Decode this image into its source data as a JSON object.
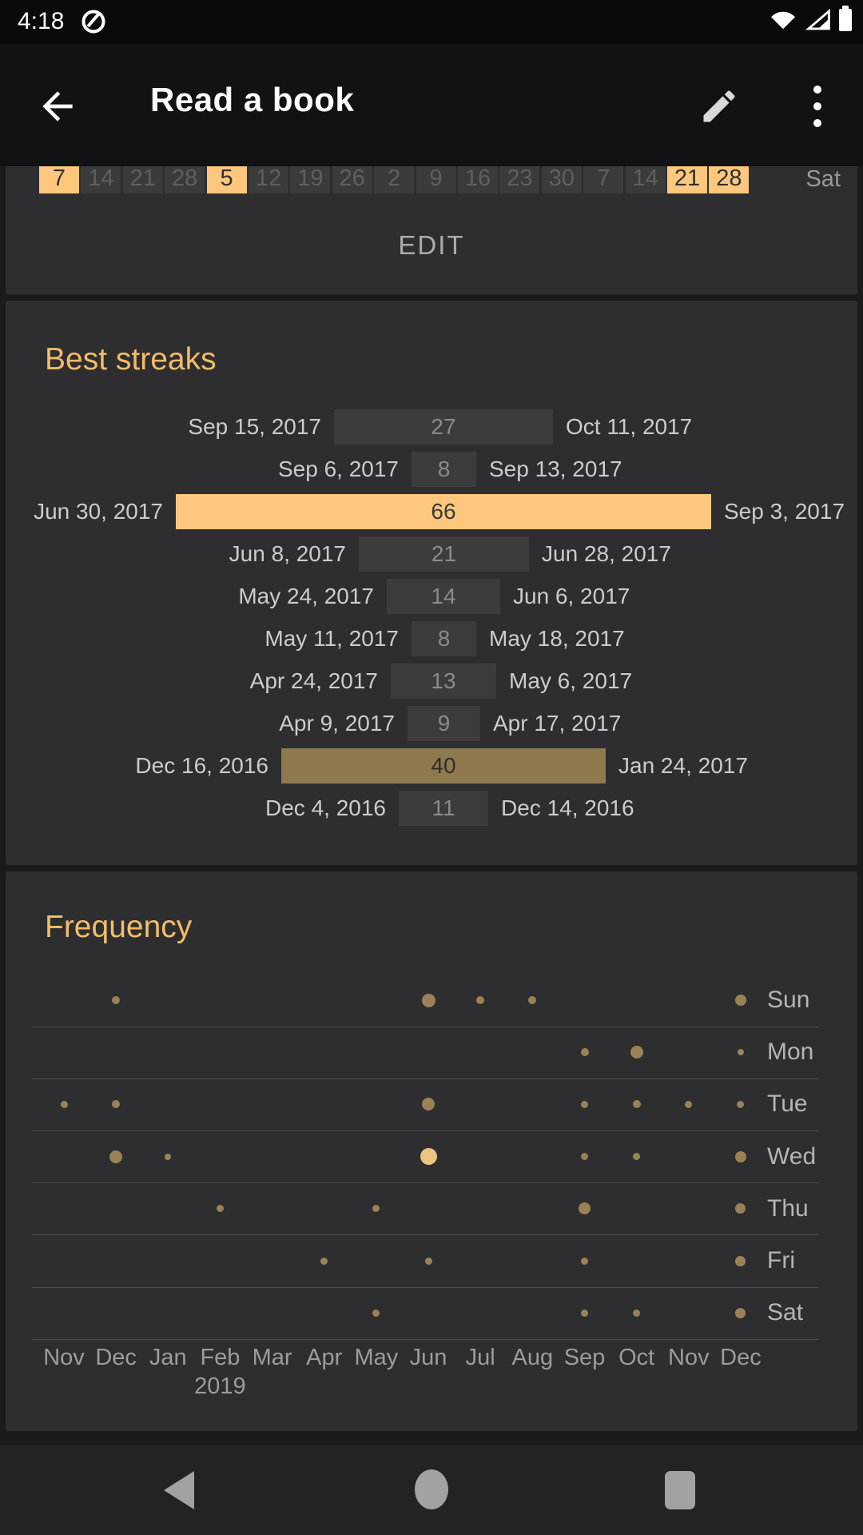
{
  "status_bar": {
    "time": "4:18"
  },
  "app_bar": {
    "title": "Read a book"
  },
  "calendar": {
    "cells": [
      "7",
      "14",
      "21",
      "28",
      "5",
      "12",
      "19",
      "26",
      "2",
      "9",
      "16",
      "23",
      "30",
      "7",
      "14",
      "21",
      "28"
    ],
    "highlighted": [
      0,
      4,
      15,
      16
    ],
    "weekday_label": "Sat",
    "edit_label": "EDIT"
  },
  "best_streaks": {
    "title": "Best streaks",
    "max_value": 66,
    "rows": [
      {
        "start": "Sep 15, 2017",
        "value": 27,
        "end": "Oct 11, 2017",
        "tone": "gray"
      },
      {
        "start": "Sep 6, 2017",
        "value": 8,
        "end": "Sep 13, 2017",
        "tone": "gray"
      },
      {
        "start": "Jun 30, 2017",
        "value": 66,
        "end": "Sep 3, 2017",
        "tone": "amber"
      },
      {
        "start": "Jun 8, 2017",
        "value": 21,
        "end": "Jun 28, 2017",
        "tone": "gray"
      },
      {
        "start": "May 24, 2017",
        "value": 14,
        "end": "Jun 6, 2017",
        "tone": "gray"
      },
      {
        "start": "May 11, 2017",
        "value": 8,
        "end": "May 18, 2017",
        "tone": "gray"
      },
      {
        "start": "Apr 24, 2017",
        "value": 13,
        "end": "May 6, 2017",
        "tone": "gray"
      },
      {
        "start": "Apr 9, 2017",
        "value": 9,
        "end": "Apr 17, 2017",
        "tone": "gray"
      },
      {
        "start": "Dec 16, 2016",
        "value": 40,
        "end": "Jan 24, 2017",
        "tone": "olive"
      },
      {
        "start": "Dec 4, 2016",
        "value": 11,
        "end": "Dec 14, 2016",
        "tone": "gray"
      }
    ]
  },
  "frequency": {
    "title": "Frequency",
    "months": [
      "Nov",
      "Dec",
      "Jan",
      "Feb",
      "Mar",
      "Apr",
      "May",
      "Jun",
      "Jul",
      "Aug",
      "Sep",
      "Oct",
      "Nov",
      "Dec"
    ],
    "year_label": "2019",
    "year_month_index": 3,
    "days": [
      {
        "label": "Sun",
        "dots": [
          {
            "m": 1,
            "s": 10
          },
          {
            "m": 7,
            "s": 17
          },
          {
            "m": 8,
            "s": 10
          },
          {
            "m": 9,
            "s": 10
          },
          {
            "m": 13,
            "s": 14
          }
        ]
      },
      {
        "label": "Mon",
        "dots": [
          {
            "m": 10,
            "s": 10
          },
          {
            "m": 11,
            "s": 16
          },
          {
            "m": 13,
            "s": 8
          }
        ]
      },
      {
        "label": "Tue",
        "dots": [
          {
            "m": 0,
            "s": 9
          },
          {
            "m": 1,
            "s": 10
          },
          {
            "m": 7,
            "s": 16
          },
          {
            "m": 10,
            "s": 9
          },
          {
            "m": 11,
            "s": 10
          },
          {
            "m": 12,
            "s": 9
          },
          {
            "m": 13,
            "s": 9
          }
        ]
      },
      {
        "label": "Wed",
        "dots": [
          {
            "m": 1,
            "s": 16
          },
          {
            "m": 2,
            "s": 8
          },
          {
            "m": 7,
            "s": 21,
            "bright": true
          },
          {
            "m": 10,
            "s": 9
          },
          {
            "m": 11,
            "s": 9
          },
          {
            "m": 13,
            "s": 14
          }
        ]
      },
      {
        "label": "Thu",
        "dots": [
          {
            "m": 3,
            "s": 9
          },
          {
            "m": 6,
            "s": 9
          },
          {
            "m": 10,
            "s": 15
          },
          {
            "m": 13,
            "s": 13
          }
        ]
      },
      {
        "label": "Fri",
        "dots": [
          {
            "m": 5,
            "s": 9
          },
          {
            "m": 7,
            "s": 9
          },
          {
            "m": 10,
            "s": 9
          },
          {
            "m": 13,
            "s": 13
          }
        ]
      },
      {
        "label": "Sat",
        "dots": [
          {
            "m": 6,
            "s": 9
          },
          {
            "m": 10,
            "s": 9
          },
          {
            "m": 11,
            "s": 9
          },
          {
            "m": 13,
            "s": 13
          }
        ]
      }
    ]
  },
  "nav_bar": {
    "icons": [
      "back-triangle",
      "home-circle",
      "recents-square"
    ]
  },
  "colors": {
    "accent_amber": "#fdc87d",
    "title_amber": "#f2bd66",
    "olive_bar": "#8f7a4e",
    "gray_bar": "#3c3c3c",
    "dot": "#9b8256",
    "dot_bright": "#e9c57f",
    "card_bg": "#2e2e30",
    "page_bg": "#1b1b1d"
  }
}
